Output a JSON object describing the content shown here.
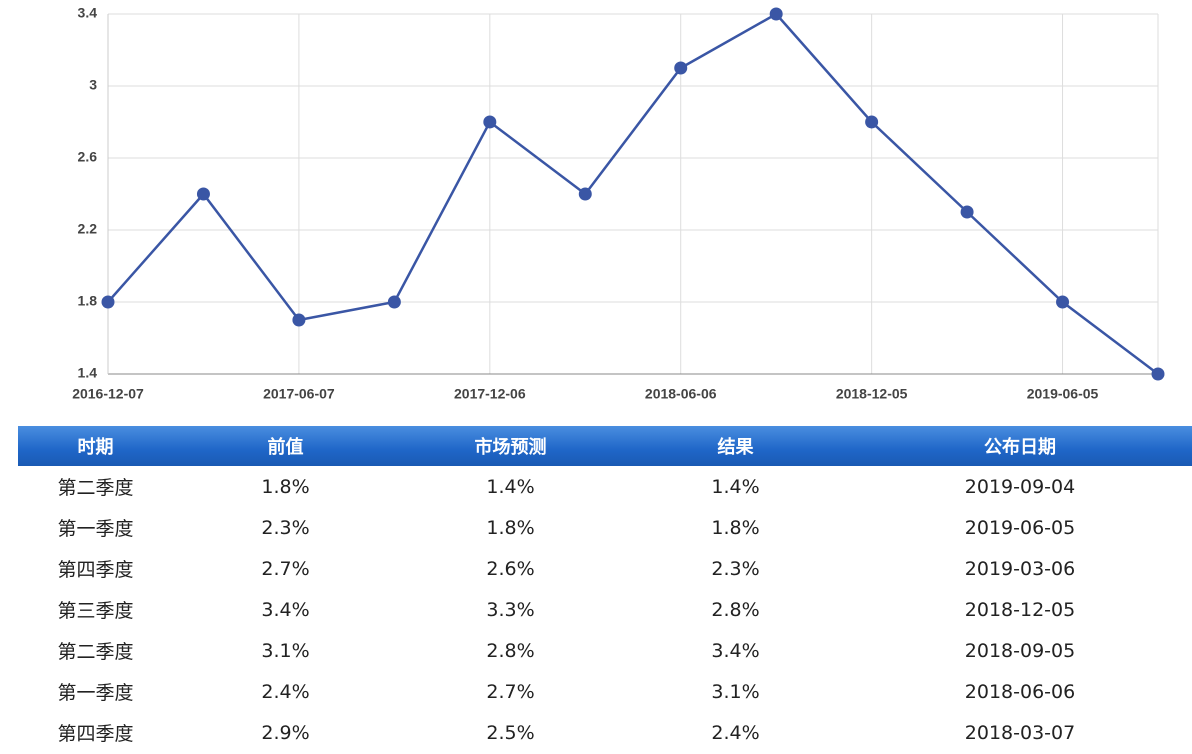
{
  "chart_data": {
    "type": "line",
    "categories": [
      "2016-12-07",
      null,
      "2017-06-07",
      null,
      "2017-12-06",
      null,
      "2018-06-06",
      null,
      "2018-12-05",
      null,
      "2019-06-05",
      null
    ],
    "series": [
      {
        "color": "#3a56a5",
        "values": [
          1.8,
          2.4,
          1.7,
          1.8,
          2.8,
          2.4,
          3.1,
          3.4,
          2.8,
          2.3,
          1.8,
          1.4
        ]
      }
    ],
    "ylim": [
      1.4,
      3.4
    ],
    "yticks": [
      1.4,
      1.8,
      2.2,
      2.6,
      3,
      3.4
    ],
    "grid": true
  },
  "table": {
    "header": [
      "时期",
      "前值",
      "市场预测",
      "结果",
      "公布日期"
    ],
    "rows": [
      [
        "第二季度",
        "1.8%",
        "1.4%",
        "1.4%",
        "2019-09-04"
      ],
      [
        "第一季度",
        "2.3%",
        "1.8%",
        "1.8%",
        "2019-06-05"
      ],
      [
        "第四季度",
        "2.7%",
        "2.6%",
        "2.3%",
        "2019-03-06"
      ],
      [
        "第三季度",
        "3.4%",
        "3.3%",
        "2.8%",
        "2018-12-05"
      ],
      [
        "第二季度",
        "3.1%",
        "2.8%",
        "3.4%",
        "2018-09-05"
      ],
      [
        "第一季度",
        "2.4%",
        "2.7%",
        "3.1%",
        "2018-06-06"
      ],
      [
        "第四季度",
        "2.9%",
        "2.5%",
        "2.4%",
        "2018-03-07"
      ]
    ]
  }
}
